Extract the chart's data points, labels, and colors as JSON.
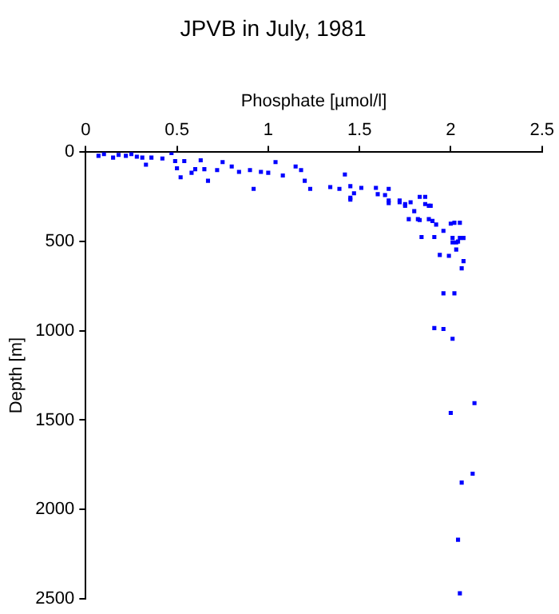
{
  "chart_data": {
    "type": "scatter",
    "title": "JPVB in July, 1981",
    "xlabel": "Phosphate [µmol/l]",
    "ylabel": "Depth [m]",
    "xlim": [
      0,
      2.5
    ],
    "xticks": [
      0,
      0.5,
      1,
      1.5,
      2,
      2.5
    ],
    "ylim": [
      2500,
      0
    ],
    "yticks": [
      0,
      500,
      1000,
      1500,
      2000,
      2500
    ],
    "grid": false,
    "legend": false,
    "marker": "square",
    "series": [
      {
        "color": "#0000ff",
        "x": [
          0.07,
          0.1,
          0.15,
          0.18,
          0.22,
          0.25,
          0.28,
          0.31,
          0.33,
          0.36,
          0.42,
          0.47,
          0.49,
          0.5,
          0.52,
          0.54,
          0.58,
          0.6,
          0.63,
          0.65,
          0.67,
          0.72,
          0.75,
          0.8,
          0.84,
          0.9,
          0.92,
          0.96,
          1.0,
          1.04,
          1.08,
          1.15,
          1.18,
          1.2,
          1.23,
          1.34,
          1.39,
          1.42,
          1.45,
          1.45,
          1.47,
          1.51,
          1.59,
          1.6,
          1.64,
          1.66,
          1.66,
          1.72,
          1.75,
          1.78,
          1.77,
          1.82,
          1.83,
          1.86,
          1.86,
          1.89,
          1.84,
          1.88,
          1.91,
          1.96,
          2.02,
          2.05,
          2.01,
          2.05,
          2.04,
          1.45,
          1.66,
          1.72,
          1.75,
          1.8,
          1.88,
          1.83,
          1.9,
          1.92,
          2.0,
          2.01,
          2.03,
          2.07,
          2.03,
          1.94,
          1.99,
          2.07,
          2.06,
          1.96,
          2.02,
          1.91,
          1.96,
          2.01,
          2.13,
          2.0,
          2.12,
          2.06,
          2.04,
          2.05
        ],
        "values": [
          20,
          10,
          30,
          15,
          20,
          10,
          25,
          30,
          70,
          30,
          35,
          5,
          50,
          90,
          140,
          50,
          115,
          95,
          45,
          95,
          160,
          100,
          55,
          80,
          110,
          100,
          205,
          110,
          115,
          55,
          130,
          80,
          100,
          160,
          205,
          195,
          205,
          125,
          190,
          255,
          230,
          200,
          200,
          235,
          240,
          205,
          270,
          280,
          290,
          280,
          375,
          375,
          250,
          250,
          290,
          300,
          475,
          375,
          475,
          440,
          395,
          395,
          480,
          480,
          500,
          265,
          285,
          270,
          300,
          330,
          300,
          380,
          385,
          405,
          400,
          505,
          505,
          480,
          545,
          575,
          580,
          610,
          650,
          790,
          790,
          985,
          990,
          1045,
          1405,
          1460,
          1800,
          1850,
          2170,
          2470
        ]
      }
    ]
  }
}
